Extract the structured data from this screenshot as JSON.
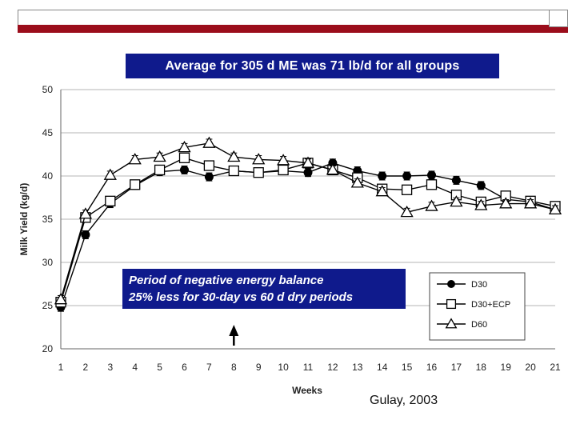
{
  "banner": "Average for 305 d ME was 71 lb/d for all groups",
  "note": {
    "line1": "Period of negative energy balance",
    "line2": "25% less for 30-day vs 60 d dry periods"
  },
  "credit": "Gulay, 2003",
  "chart_data": {
    "type": "line",
    "xlabel": "Weeks",
    "ylabel": "Milk Yield (kg/d)",
    "xlim": [
      1,
      21
    ],
    "ylim": [
      20,
      50
    ],
    "x_ticks": [
      1,
      2,
      3,
      4,
      5,
      6,
      7,
      8,
      9,
      10,
      11,
      12,
      13,
      14,
      15,
      16,
      17,
      18,
      19,
      20,
      21
    ],
    "y_ticks": [
      20,
      25,
      30,
      35,
      40,
      45,
      50
    ],
    "grid": true,
    "legend_position": "bottom-right",
    "annotation_arrow_week": 8,
    "series": [
      {
        "name": "D30",
        "marker": "circle-filled",
        "color": "#000000",
        "x": [
          1,
          2,
          3,
          4,
          5,
          6,
          7,
          8,
          9,
          10,
          11,
          12,
          13,
          14,
          15,
          16,
          17,
          18,
          19,
          20,
          21
        ],
        "values": [
          24.8,
          33.2,
          36.8,
          38.9,
          40.5,
          40.7,
          39.9,
          40.6,
          40.4,
          40.6,
          40.4,
          41.5,
          40.6,
          40.0,
          40.0,
          40.1,
          39.5,
          38.9,
          37.3,
          37.0,
          36.1
        ]
      },
      {
        "name": "D30+ECP",
        "marker": "square-open",
        "color": "#000000",
        "x": [
          1,
          2,
          3,
          4,
          5,
          6,
          7,
          8,
          9,
          10,
          11,
          12,
          13,
          14,
          15,
          16,
          17,
          18,
          19,
          20,
          21
        ],
        "values": [
          25.4,
          35.2,
          37.1,
          39.0,
          40.7,
          42.1,
          41.2,
          40.6,
          40.4,
          40.7,
          41.5,
          40.7,
          39.8,
          38.5,
          38.4,
          39.0,
          37.8,
          37.0,
          37.7,
          37.1,
          36.5
        ]
      },
      {
        "name": "D60",
        "marker": "triangle-open",
        "color": "#000000",
        "x": [
          1,
          2,
          3,
          4,
          5,
          6,
          7,
          8,
          9,
          10,
          11,
          12,
          13,
          14,
          15,
          16,
          17,
          18,
          19,
          20,
          21
        ],
        "values": [
          25.7,
          35.6,
          40.1,
          41.9,
          42.2,
          43.3,
          43.8,
          42.2,
          41.9,
          41.8,
          41.5,
          40.7,
          39.2,
          38.2,
          35.8,
          36.5,
          37.0,
          36.6,
          36.8,
          36.8,
          36.1
        ]
      }
    ]
  }
}
